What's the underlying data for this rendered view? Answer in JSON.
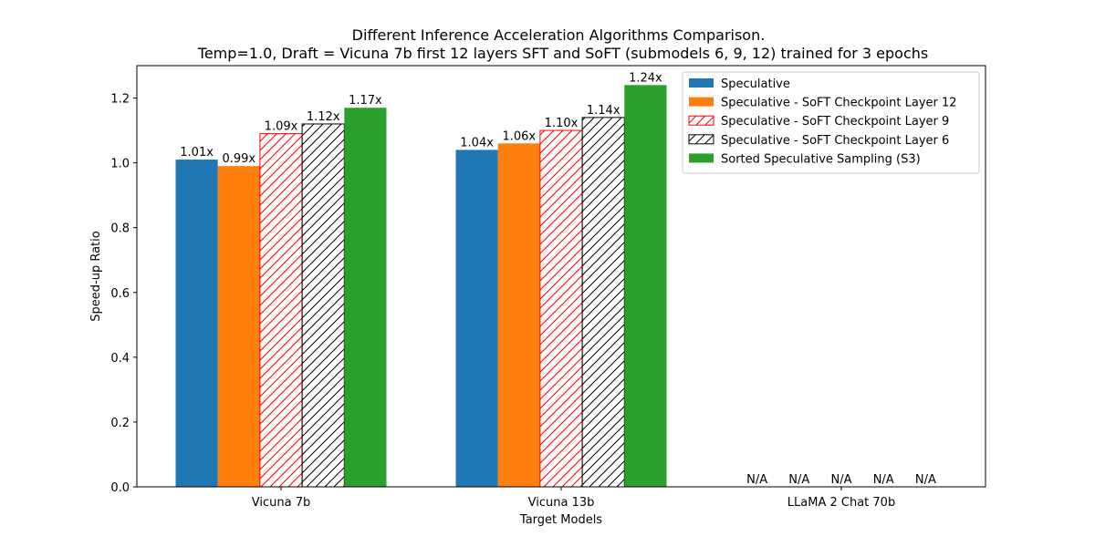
{
  "chart_data": {
    "type": "bar",
    "title": "Different Inference Acceleration Algorithms Comparison.",
    "subtitle": "Temp=1.0, Draft = Vicuna 7b first 12 layers SFT and SoFT (submodels 6, 9, 12) trained for 3 epochs",
    "xlabel": "Target Models",
    "ylabel": "Speed-up Ratio",
    "categories": [
      "Vicuna 7b",
      "Vicuna 13b",
      "LLaMA 2 Chat 70b"
    ],
    "ylim": [
      0,
      1.3
    ],
    "yticks": [
      "0.0",
      "0.2",
      "0.4",
      "0.6",
      "0.8",
      "1.0",
      "1.2"
    ],
    "grid": false,
    "legend_position": "top-right",
    "series": [
      {
        "name": "Speculative",
        "values": [
          1.01,
          1.04,
          0
        ],
        "labels": [
          "1.01x",
          "1.04x",
          "N/A"
        ],
        "color": "#1f77b4",
        "hatch": false
      },
      {
        "name": "Speculative - SoFT Checkpoint Layer 12",
        "values": [
          0.99,
          1.06,
          0
        ],
        "labels": [
          "0.99x",
          "1.06x",
          "N/A"
        ],
        "color": "#ff7f0e",
        "hatch": false
      },
      {
        "name": "Speculative - SoFT Checkpoint Layer 9",
        "values": [
          1.09,
          1.1,
          0
        ],
        "labels": [
          "1.09x",
          "1.10x",
          "N/A"
        ],
        "color": "#ff0000",
        "hatch": true
      },
      {
        "name": "Speculative - SoFT Checkpoint Layer 6",
        "values": [
          1.12,
          1.14,
          0
        ],
        "labels": [
          "1.12x",
          "1.14x",
          "N/A"
        ],
        "color": "#000000",
        "hatch": true
      },
      {
        "name": "Sorted Speculative Sampling (S3)",
        "values": [
          1.17,
          1.24,
          0
        ],
        "labels": [
          "1.17x",
          "1.24x",
          "N/A"
        ],
        "color": "#2ca02c",
        "hatch": false
      }
    ]
  }
}
